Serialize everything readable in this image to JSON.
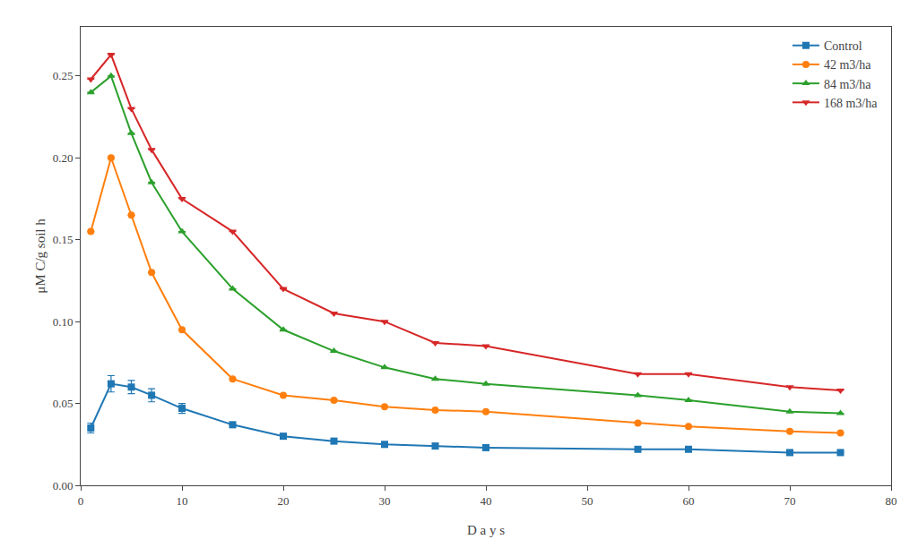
{
  "chart_data": {
    "type": "line",
    "xlabel": "D a y s",
    "ylabel": "μM C/g soil h",
    "xlim": [
      0,
      80
    ],
    "ylim": [
      0.0,
      0.28
    ],
    "xticks": [
      0,
      10,
      20,
      30,
      40,
      50,
      60,
      70,
      80
    ],
    "yticks": [
      {
        "value": 0.0,
        "label": "0.00"
      },
      0.05,
      {
        "value": 0.1,
        "label": "0.10"
      },
      0.15,
      {
        "value": 0.2,
        "label": "0.20"
      },
      0.25
    ],
    "grid": false,
    "legend": "upper right",
    "x": [
      1,
      3,
      5,
      7,
      10,
      15,
      20,
      25,
      30,
      35,
      40,
      55,
      60,
      70,
      75
    ],
    "series": [
      {
        "name": "Control",
        "marker": "square",
        "values": [
          0.035,
          0.062,
          0.06,
          0.055,
          0.047,
          0.037,
          0.03,
          0.027,
          0.025,
          0.024,
          0.023,
          0.022,
          0.022,
          0.02,
          0.02
        ],
        "yerr": [
          0.003,
          0.005,
          0.004,
          0.004,
          0.003,
          0.0,
          0.0,
          0.0,
          0.0,
          0.0,
          0.0,
          0.0,
          0.0,
          0.0,
          0.0
        ]
      },
      {
        "name": "42 m3/ha",
        "marker": "circle",
        "values": [
          0.155,
          0.2,
          0.165,
          0.13,
          0.095,
          0.065,
          0.055,
          0.052,
          0.048,
          0.046,
          0.045,
          0.038,
          0.036,
          0.033,
          0.032
        ],
        "yerr": [
          0.0,
          0.0,
          0.0,
          0.0,
          0.0,
          0.0,
          0.0,
          0.0,
          0.0,
          0.0,
          0.0,
          0.0,
          0.0,
          0.0,
          0.0
        ]
      },
      {
        "name": "84 m3/ha",
        "marker": "triangle-up",
        "values": [
          0.24,
          0.25,
          0.215,
          0.185,
          0.155,
          0.12,
          0.095,
          0.082,
          0.072,
          0.065,
          0.062,
          0.055,
          0.052,
          0.045,
          0.044
        ],
        "yerr": [
          0.0,
          0.0,
          0.0,
          0.0,
          0.0,
          0.0,
          0.0,
          0.0,
          0.0,
          0.0,
          0.0,
          0.0,
          0.0,
          0.0,
          0.0
        ]
      },
      {
        "name": "168 m3/ha",
        "marker": "triangle-down",
        "values": [
          0.248,
          0.263,
          0.23,
          0.205,
          0.175,
          0.155,
          0.12,
          0.105,
          0.1,
          0.087,
          0.085,
          0.068,
          0.068,
          0.06,
          0.058
        ],
        "yerr": [
          0.0,
          0.0,
          0.0,
          0.0,
          0.0,
          0.0,
          0.0,
          0.0,
          0.0,
          0.0,
          0.0,
          0.0,
          0.0,
          0.0,
          0.0
        ]
      }
    ]
  }
}
